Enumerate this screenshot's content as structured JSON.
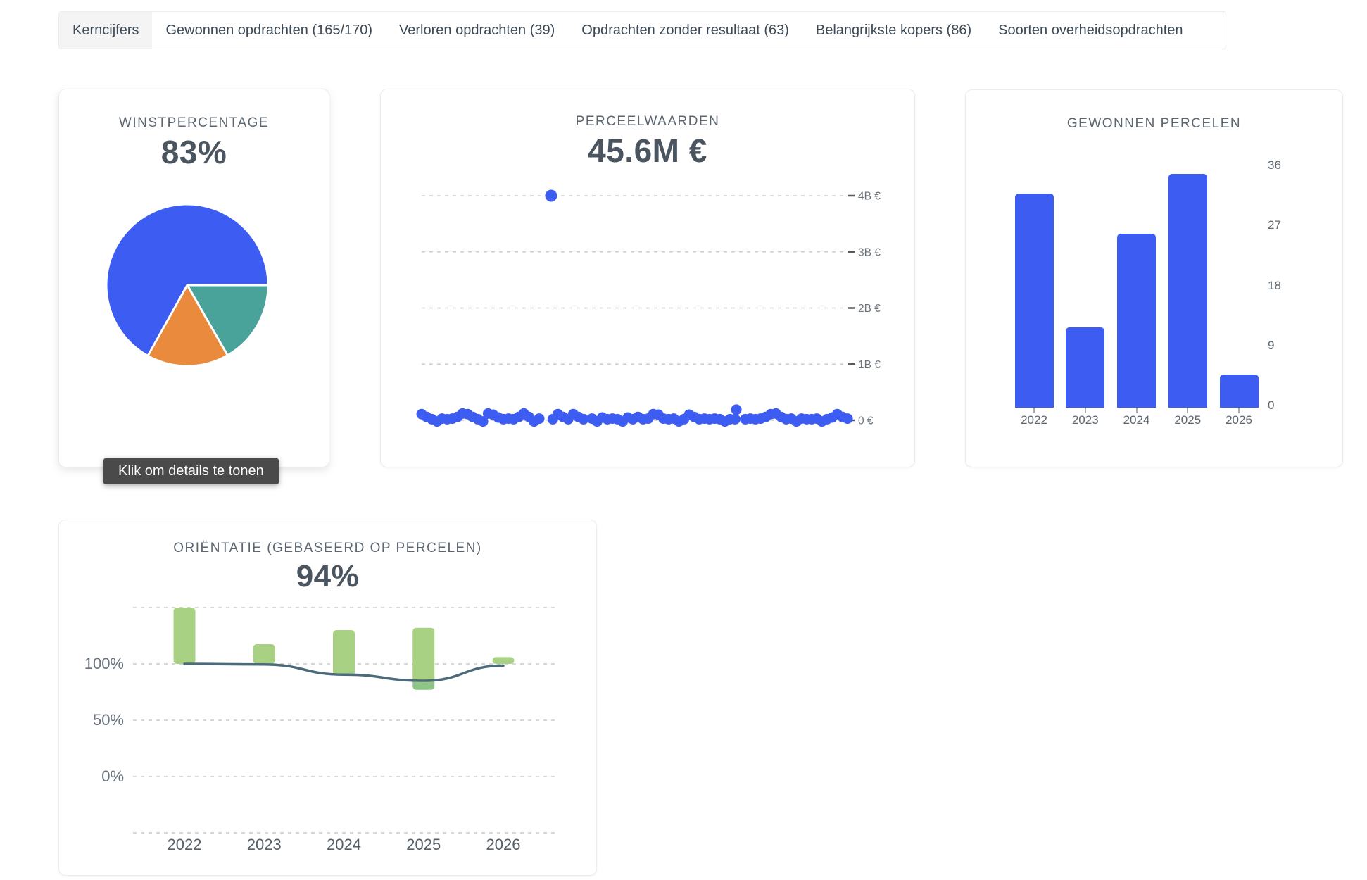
{
  "tabs": {
    "items": [
      {
        "label": "Kerncijfers",
        "active": true
      },
      {
        "label": "Gewonnen opdrachten (165/170)",
        "active": false
      },
      {
        "label": "Verloren opdrachten (39)",
        "active": false
      },
      {
        "label": "Opdrachten zonder resultaat (63)",
        "active": false
      },
      {
        "label": "Belangrijkste kopers (86)",
        "active": false
      },
      {
        "label": "Soorten overheidsopdrachten",
        "active": false
      }
    ]
  },
  "cards": {
    "winst": {
      "title": "WINSTPERCENTAGE",
      "value": "83%",
      "tooltip": "Klik om details te tonen"
    },
    "perceel": {
      "title": "PERCEELWAARDEN",
      "value": "45.6M €"
    },
    "gewonnen": {
      "title": "GEWONNEN PERCELEN"
    },
    "orientatie": {
      "title": "ORIËNTATIE (GEBASEERD OP PERCELEN)",
      "value": "94%"
    }
  },
  "colors": {
    "blue": "#3d5cf2",
    "teal": "#4aa39a",
    "orange": "#e98a3c",
    "green": "#a9d183",
    "green_dark": "#8fc487",
    "line": "#4b6a7a",
    "grid": "#cdcdcd",
    "tick": "#555b61",
    "axis_text": "#6b747d"
  },
  "chart_data": [
    {
      "card": "winst",
      "type": "pie",
      "note": "slices drawn clockwise starting at 3 o'clock",
      "slices": [
        {
          "name": "teal",
          "percent": 16.7,
          "color": "#4aa39a"
        },
        {
          "name": "orange",
          "percent": 16.4,
          "color": "#e98a3c"
        },
        {
          "name": "blue",
          "percent": 66.9,
          "color": "#3d5cf2"
        }
      ]
    },
    {
      "card": "perceel",
      "type": "scatter",
      "ylim": [
        0,
        4.3
      ],
      "yticks": [
        0,
        1,
        2,
        3,
        4
      ],
      "ytick_labels": [
        "0 €",
        "1B €",
        "2B €",
        "3B €",
        "4B €"
      ],
      "x_axis": "unlabeled, x stored as 0-1 fraction of plot width",
      "outlier": [
        0.304,
        4.0
      ],
      "points": [
        [
          0.0,
          0.11
        ],
        [
          0.012,
          0.06
        ],
        [
          0.024,
          0.02
        ],
        [
          0.036,
          -0.02
        ],
        [
          0.048,
          0.03
        ],
        [
          0.06,
          0.02
        ],
        [
          0.072,
          0.03
        ],
        [
          0.084,
          0.06
        ],
        [
          0.096,
          0.12
        ],
        [
          0.108,
          0.11
        ],
        [
          0.12,
          0.06
        ],
        [
          0.132,
          0.02
        ],
        [
          0.144,
          -0.02
        ],
        [
          0.156,
          0.12
        ],
        [
          0.168,
          0.1
        ],
        [
          0.18,
          0.05
        ],
        [
          0.192,
          0.02
        ],
        [
          0.204,
          0.03
        ],
        [
          0.216,
          0.02
        ],
        [
          0.228,
          0.06
        ],
        [
          0.24,
          0.12
        ],
        [
          0.252,
          0.06
        ],
        [
          0.264,
          -0.02
        ],
        [
          0.276,
          0.03
        ],
        [
          0.308,
          0.02
        ],
        [
          0.32,
          0.11
        ],
        [
          0.332,
          0.06
        ],
        [
          0.344,
          0.02
        ],
        [
          0.356,
          0.11
        ],
        [
          0.368,
          0.06
        ],
        [
          0.38,
          0.02
        ],
        [
          0.4,
          0.03
        ],
        [
          0.412,
          -0.02
        ],
        [
          0.424,
          0.05
        ],
        [
          0.436,
          0.02
        ],
        [
          0.448,
          0.03
        ],
        [
          0.46,
          0.02
        ],
        [
          0.472,
          -0.02
        ],
        [
          0.484,
          0.05
        ],
        [
          0.496,
          0.02
        ],
        [
          0.508,
          0.06
        ],
        [
          0.52,
          0.02
        ],
        [
          0.532,
          0.03
        ],
        [
          0.544,
          0.11
        ],
        [
          0.556,
          0.1
        ],
        [
          0.568,
          0.03
        ],
        [
          0.58,
          0.02
        ],
        [
          0.592,
          0.03
        ],
        [
          0.604,
          -0.02
        ],
        [
          0.616,
          0.02
        ],
        [
          0.628,
          0.1
        ],
        [
          0.64,
          0.06
        ],
        [
          0.652,
          0.02
        ],
        [
          0.664,
          0.03
        ],
        [
          0.676,
          0.02
        ],
        [
          0.688,
          0.03
        ],
        [
          0.7,
          0.02
        ],
        [
          0.712,
          -0.02
        ],
        [
          0.724,
          0.02
        ],
        [
          0.736,
          0.02
        ],
        [
          0.739,
          0.19
        ],
        [
          0.76,
          0.02
        ],
        [
          0.772,
          0.03
        ],
        [
          0.784,
          0.02
        ],
        [
          0.796,
          0.03
        ],
        [
          0.808,
          0.06
        ],
        [
          0.82,
          0.11
        ],
        [
          0.832,
          0.12
        ],
        [
          0.844,
          0.06
        ],
        [
          0.856,
          0.02
        ],
        [
          0.868,
          0.03
        ],
        [
          0.88,
          -0.02
        ],
        [
          0.892,
          0.03
        ],
        [
          0.904,
          0.02
        ],
        [
          0.916,
          0.02
        ],
        [
          0.928,
          0.03
        ],
        [
          0.94,
          -0.02
        ],
        [
          0.952,
          0.02
        ],
        [
          0.964,
          0.05
        ],
        [
          0.976,
          0.11
        ],
        [
          0.988,
          0.06
        ],
        [
          1.0,
          0.03
        ]
      ]
    },
    {
      "card": "gewonnen",
      "type": "bar",
      "categories": [
        "2022",
        "2023",
        "2024",
        "2025",
        "2026"
      ],
      "values": [
        32,
        12,
        26,
        35,
        5
      ],
      "yticks": [
        0,
        9,
        18,
        27,
        36
      ],
      "ylim": [
        0,
        36
      ],
      "legend": "none",
      "grid": "off"
    },
    {
      "card": "orientatie",
      "type": "bar+line",
      "categories": [
        "2022",
        "2023",
        "2024",
        "2025",
        "2026"
      ],
      "bars": [
        {
          "low": 100,
          "high": 150
        },
        {
          "low": 100,
          "high": 117.5
        },
        {
          "low": 89.5,
          "high": 130
        },
        {
          "low": 77,
          "high": 132,
          "low_dark": 85.5
        },
        {
          "low": 100,
          "high": 106
        }
      ],
      "line_values": [
        100,
        99.5,
        90.5,
        85,
        98.5
      ],
      "gridlines": [
        150,
        100,
        50,
        0,
        -50
      ],
      "yticks_labeled": [
        100,
        50,
        0
      ],
      "ytick_suffix": "%",
      "grid": "dashed"
    }
  ]
}
